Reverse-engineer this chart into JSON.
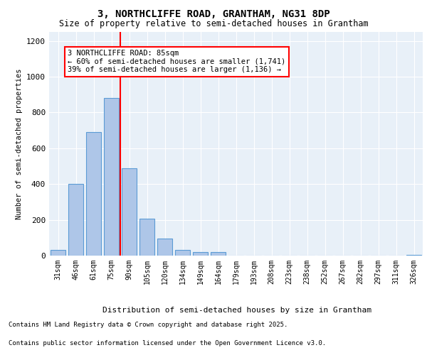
{
  "title1": "3, NORTHCLIFFE ROAD, GRANTHAM, NG31 8DP",
  "title2": "Size of property relative to semi-detached houses in Grantham",
  "xlabel": "Distribution of semi-detached houses by size in Grantham",
  "ylabel": "Number of semi-detached properties",
  "categories": [
    "31sqm",
    "46sqm",
    "61sqm",
    "75sqm",
    "90sqm",
    "105sqm",
    "120sqm",
    "134sqm",
    "149sqm",
    "164sqm",
    "179sqm",
    "193sqm",
    "208sqm",
    "223sqm",
    "238sqm",
    "252sqm",
    "267sqm",
    "282sqm",
    "297sqm",
    "311sqm",
    "326sqm"
  ],
  "values": [
    30,
    400,
    690,
    880,
    490,
    205,
    95,
    30,
    20,
    20,
    0,
    0,
    0,
    0,
    0,
    0,
    0,
    0,
    0,
    0,
    5
  ],
  "bar_color": "#aec6e8",
  "bar_edge_color": "#5b9bd5",
  "vline_color": "red",
  "vline_pos": 3.5,
  "annotation_title": "3 NORTHCLIFFE ROAD: 85sqm",
  "annotation_line1": "← 60% of semi-detached houses are smaller (1,741)",
  "annotation_line2": "39% of semi-detached houses are larger (1,136) →",
  "ylim": [
    0,
    1250
  ],
  "yticks": [
    0,
    200,
    400,
    600,
    800,
    1000,
    1200
  ],
  "background_color": "#e8f0f8",
  "footer1": "Contains HM Land Registry data © Crown copyright and database right 2025.",
  "footer2": "Contains public sector information licensed under the Open Government Licence v3.0."
}
